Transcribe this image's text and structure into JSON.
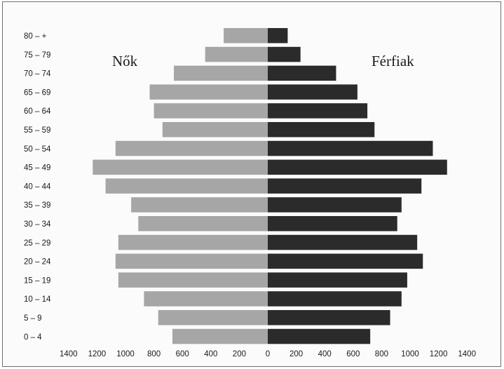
{
  "chart_data": {
    "type": "bar",
    "orientation": "horizontal",
    "layout": "population-pyramid",
    "categories": [
      "80 – +",
      "75 – 79",
      "70 – 74",
      "65 – 69",
      "60 – 64",
      "55 – 59",
      "50 – 54",
      "45 – 49",
      "40 – 44",
      "35 – 39",
      "30 – 34",
      "25 – 29",
      "20 – 24",
      "15 – 19",
      "10 – 14",
      "5 – 9",
      "0 – 4"
    ],
    "series": [
      {
        "name": "Nők",
        "side": "left",
        "color": "#a6a6a6",
        "values": [
          310,
          440,
          660,
          830,
          800,
          740,
          1070,
          1230,
          1140,
          960,
          910,
          1050,
          1070,
          1050,
          870,
          770,
          670
        ]
      },
      {
        "name": "Férfiak",
        "side": "right",
        "color": "#2b2b2b",
        "values": [
          140,
          230,
          480,
          630,
          700,
          750,
          1160,
          1260,
          1080,
          940,
          910,
          1050,
          1090,
          980,
          940,
          860,
          720
        ]
      }
    ],
    "x_tick_labels": [
      "1400",
      "1200",
      "1000",
      "800",
      "600",
      "400",
      "200",
      "0",
      "200",
      "400",
      "600",
      "800",
      "1000",
      "1200",
      "1400"
    ],
    "xlim": [
      -1400,
      1400
    ],
    "grid": false,
    "legend": "inline labels"
  }
}
